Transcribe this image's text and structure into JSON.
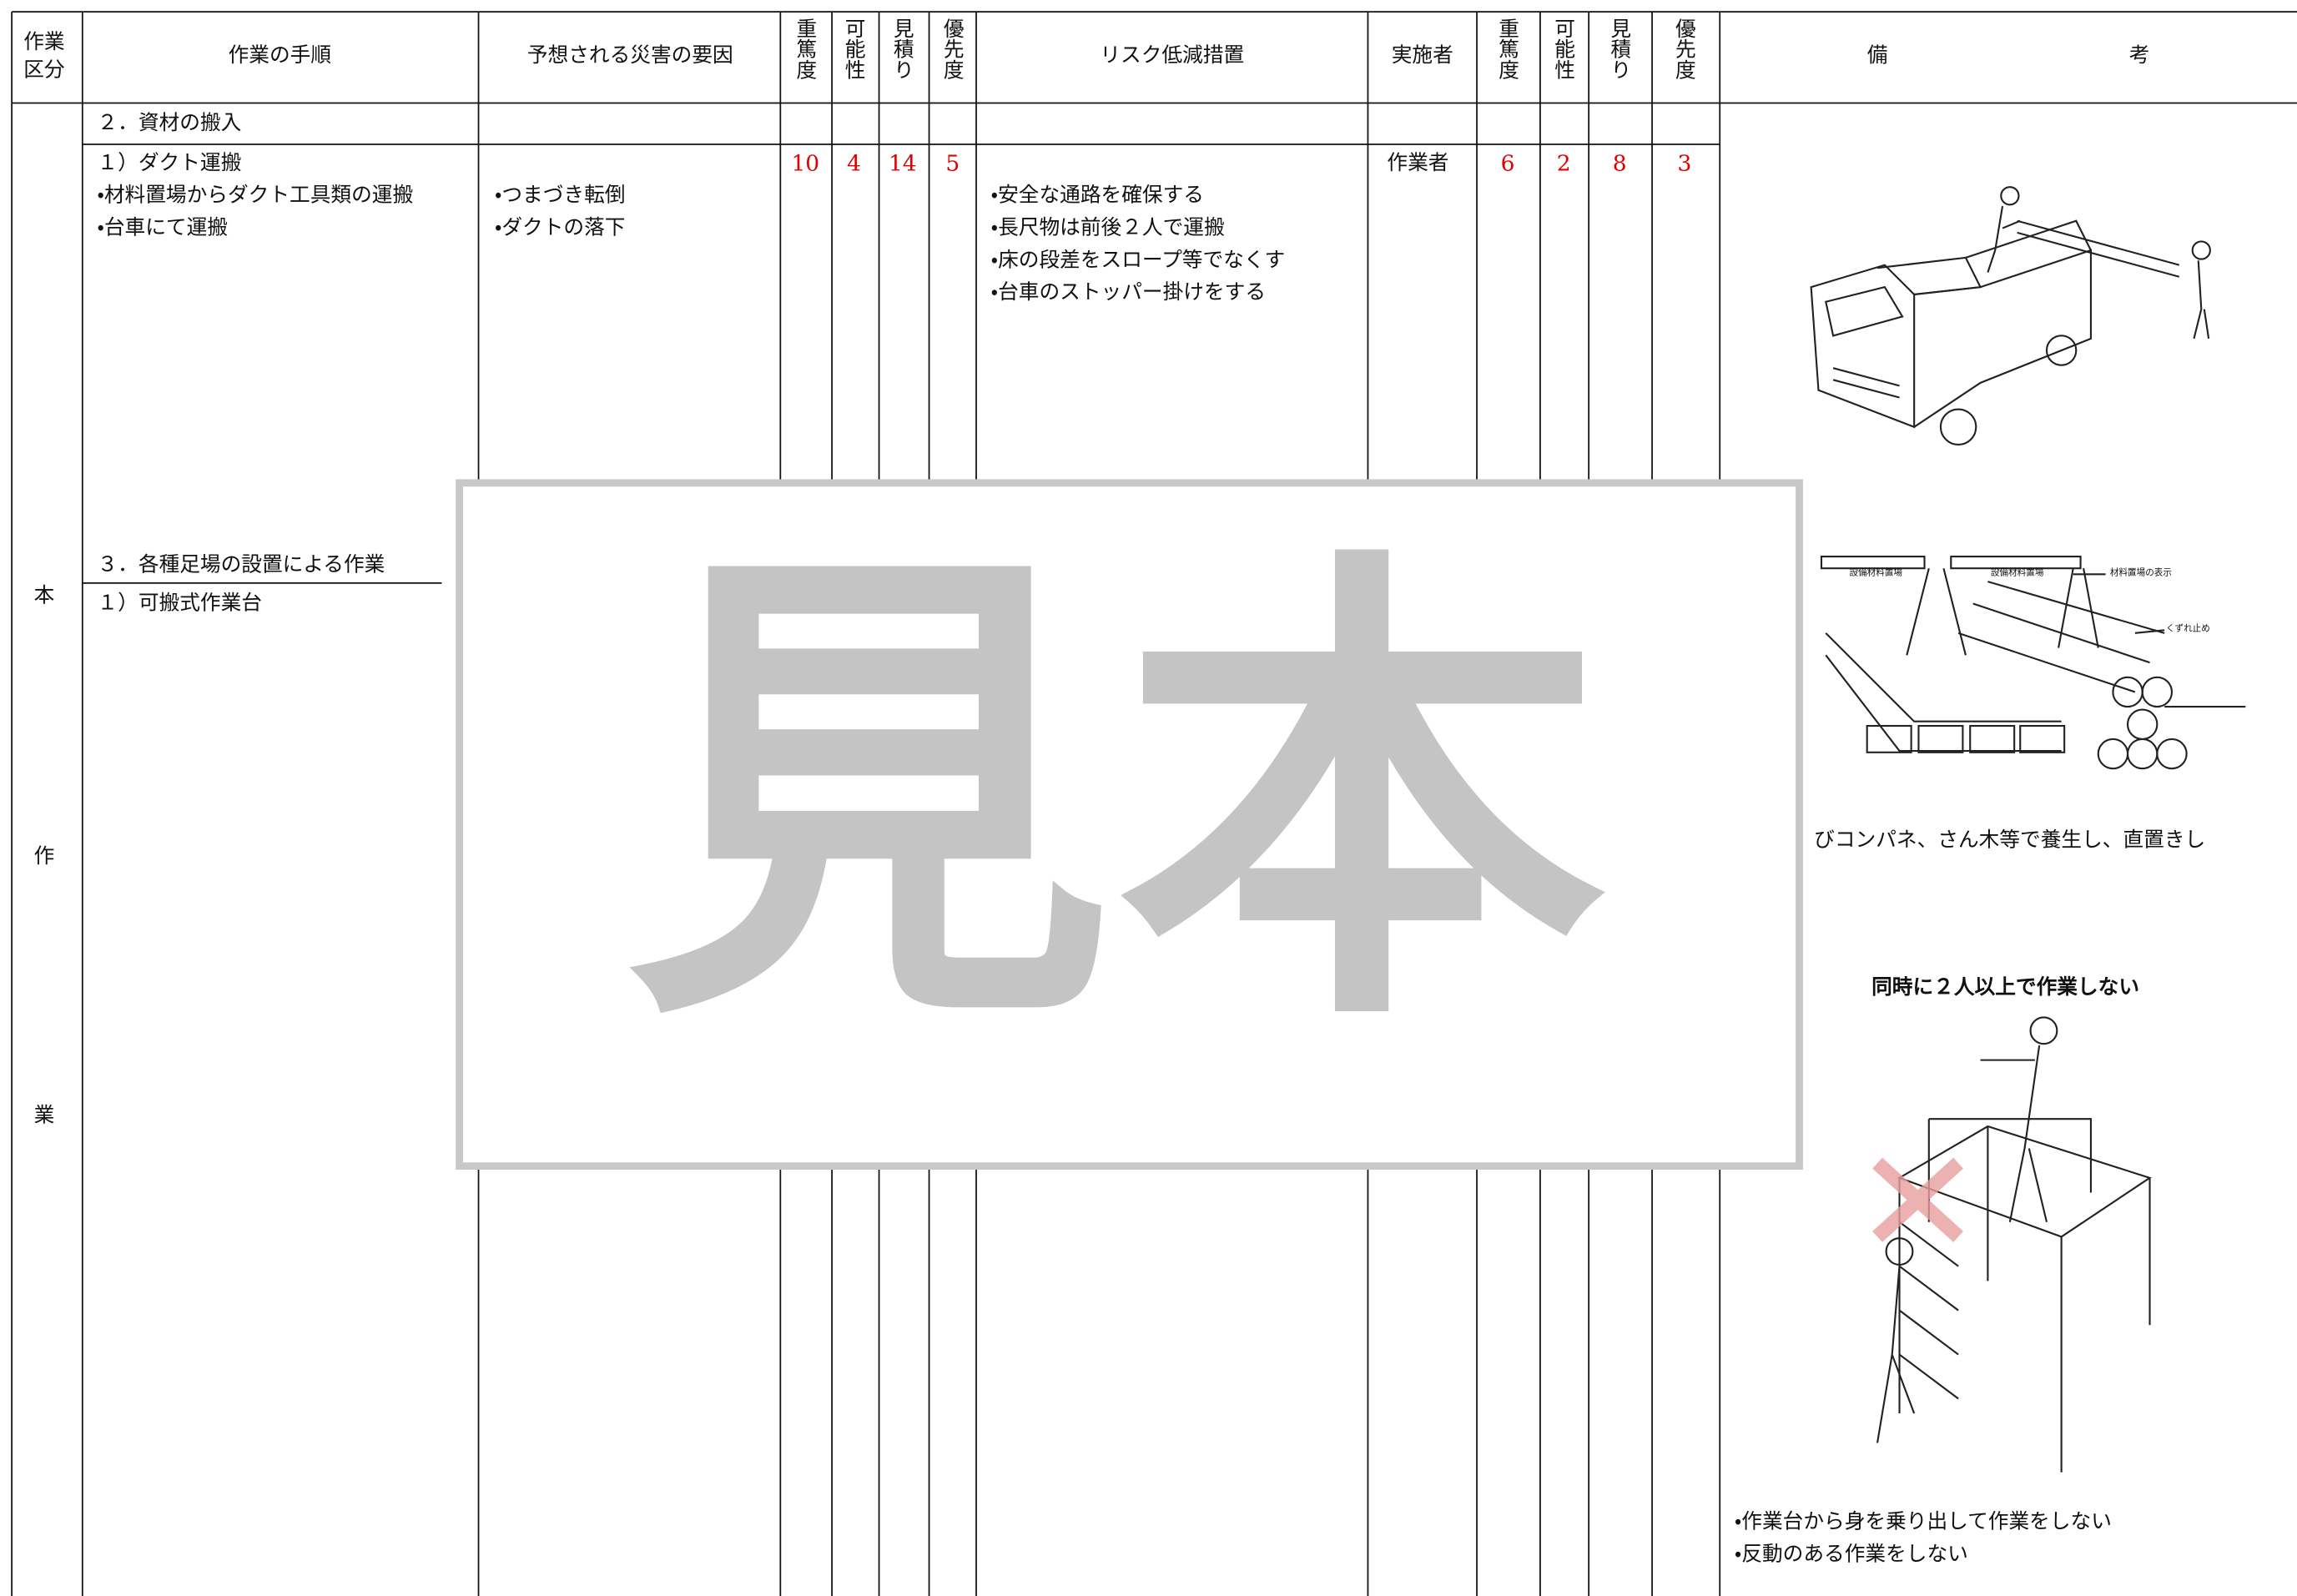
{
  "header": {
    "category": [
      "作業",
      "区分"
    ],
    "procedure": "作業の手順",
    "hazard": "予想される災害の要因",
    "severity": "重篤度",
    "likelihood": "可能性",
    "estimate": "見積り",
    "priority": "優先度",
    "measures": "リスク低減措置",
    "implementer": "実施者",
    "severity_after": "重篤度",
    "likelihood_after": "可能性",
    "estimate_after": "見積り",
    "priority_after": "優先度",
    "remarks": "備考"
  },
  "category_label": [
    "本",
    "作",
    "業"
  ],
  "sections": [
    {
      "title": "２．資材の搬入",
      "item": {
        "procedure": [
          "１）ダクト運搬",
          "・材料置場からダクト工具類の運搬",
          "・台車にて運搬"
        ],
        "hazards": [
          "・つまづき転倒",
          "・ダクトの落下"
        ],
        "before": {
          "severity": 10,
          "likelihood": 4,
          "estimate": 14,
          "priority": 5
        },
        "measures": [
          "・安全な通路を確保する",
          "・長尺物は前後２人で運搬",
          "・床の段差をスロープ等でなくす",
          "・台車のストッパー掛けをする"
        ],
        "implementer": "作業者",
        "after": {
          "severity": 6,
          "likelihood": 2,
          "estimate": 8,
          "priority": 3
        }
      }
    },
    {
      "title": "３．各種足場の設置による作業",
      "item": {
        "procedure": [
          "１）可搬式作業台"
        ]
      }
    }
  ],
  "remarks": {
    "storage_labels": [
      "設備材料置場",
      "設備材料置場",
      "材料置場の表示",
      "くずれ止め"
    ],
    "storage_note": "びコンパネ、さん木等で養生し、直置きし",
    "caution_title": "同時に２人以上で作業しない",
    "caution_notes": [
      "・作業台から身を乗り出して作業をしない",
      "・反動のある作業をしない"
    ]
  },
  "watermark": "見本"
}
